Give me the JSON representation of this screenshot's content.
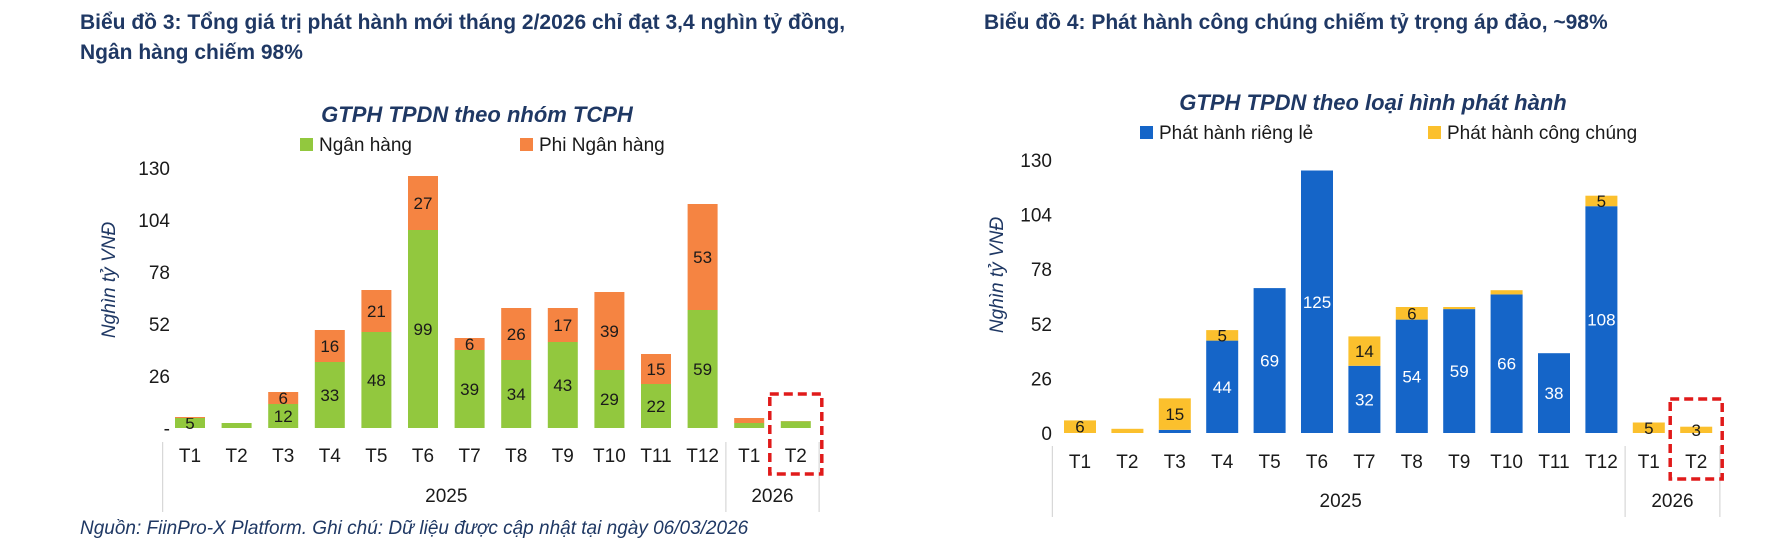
{
  "headings": {
    "left": "Biểu đồ 3: Tổng giá trị phát hành mới tháng 2/2026 chỉ đạt 3,4 nghìn tỷ đồng, Ngân hàng chiếm 98%",
    "right": "Biểu đồ 4: Phát hành công chúng chiếm tỷ trọng áp đảo, ~98%"
  },
  "source_note": "Nguồn: FiinPro-X Platform. Ghi chú: Dữ liệu được cập nhật tại ngày 06/03/2026",
  "colors": {
    "bank": "#92c83e",
    "non_bank": "#f58442",
    "private": "#1565c8",
    "public": "#fbc02d",
    "highlight": "#e01a1a",
    "axis_text": "#1a1a1a",
    "title_text": "#1f3864"
  },
  "chart_data": [
    {
      "type": "bar",
      "stacked": true,
      "title": "GTPH TPDN theo nhóm TCPH",
      "ylabel": "Nghìn tỷ VNĐ",
      "ylim": [
        0,
        130
      ],
      "yticks": [
        "-",
        "26",
        "52",
        "78",
        "104",
        "130"
      ],
      "categories": [
        "T1",
        "T2",
        "T3",
        "T4",
        "T5",
        "T6",
        "T7",
        "T8",
        "T9",
        "T10",
        "T11",
        "T12",
        "T1",
        "T2"
      ],
      "groups": [
        {
          "label": "2025",
          "count": 12
        },
        {
          "label": "2026",
          "count": 2
        }
      ],
      "legend_position": "top",
      "highlight_category_index": 13,
      "series": [
        {
          "name": "Ngân hàng",
          "color_key": "bank",
          "values": [
            5,
            2.5,
            12,
            33,
            48,
            99,
            39,
            34,
            43,
            29,
            22,
            59,
            2.5,
            3.4
          ],
          "labels": [
            "5",
            "",
            "12",
            "33",
            "48",
            "99",
            "39",
            "34",
            "43",
            "29",
            "22",
            "59",
            "",
            ""
          ]
        },
        {
          "name": "Phi Ngân hàng",
          "color_key": "non_bank",
          "values": [
            0.5,
            0,
            6,
            16,
            21,
            27,
            6,
            26,
            17,
            39,
            15,
            53,
            2.5,
            0.1
          ],
          "labels": [
            "",
            "",
            "6",
            "16",
            "21",
            "27",
            "6",
            "26",
            "17",
            "39",
            "15",
            "53",
            "",
            ""
          ]
        }
      ]
    },
    {
      "type": "bar",
      "stacked": true,
      "title": "GTPH TPDN theo loại hình phát hành",
      "ylabel": "Nghìn tỷ VNĐ",
      "ylim": [
        0,
        130
      ],
      "yticks": [
        "0",
        "26",
        "52",
        "78",
        "104",
        "130"
      ],
      "categories": [
        "T1",
        "T2",
        "T3",
        "T4",
        "T5",
        "T6",
        "T7",
        "T8",
        "T9",
        "T10",
        "T11",
        "T12",
        "T1",
        "T2"
      ],
      "groups": [
        {
          "label": "2025",
          "count": 12
        },
        {
          "label": "2026",
          "count": 2
        }
      ],
      "legend_position": "top",
      "highlight_category_index": 13,
      "series": [
        {
          "name": "Phát hành riêng lẻ",
          "color_key": "private",
          "values": [
            0,
            0,
            1.5,
            44,
            69,
            125,
            32,
            54,
            59,
            66,
            38,
            108,
            0,
            0
          ],
          "labels": [
            "",
            "",
            "",
            "44",
            "69",
            "125",
            "32",
            "54",
            "59",
            "66",
            "38",
            "108",
            "",
            ""
          ]
        },
        {
          "name": "Phát hành công chúng",
          "color_key": "public",
          "values": [
            6,
            2,
            15,
            5,
            0,
            0,
            14,
            6,
            1,
            2,
            0,
            5,
            5,
            3
          ],
          "labels": [
            "6",
            "",
            "15",
            "5",
            "",
            "",
            "14",
            "6",
            "",
            "",
            "",
            "5",
            "5",
            "3"
          ]
        }
      ]
    }
  ]
}
